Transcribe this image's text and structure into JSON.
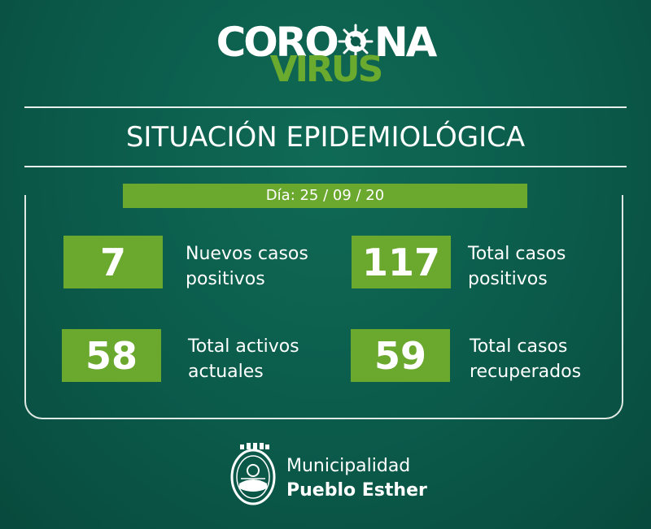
{
  "logo": {
    "line1_a": "CORO",
    "line1_b": "NA",
    "line2": "VIRUS"
  },
  "heading": "SITUACIÓN EPIDEMIOLÓGICA",
  "date": "Día: 25 / 09 / 20",
  "stats": [
    {
      "value": "7",
      "label_1": "Nuevos casos",
      "label_2": "positivos"
    },
    {
      "value": "117",
      "label_1": "Total casos",
      "label_2": "positivos"
    },
    {
      "value": "58",
      "label_1": "Total activos",
      "label_2": "actuales"
    },
    {
      "value": "59",
      "label_1": "Total casos",
      "label_2": "recuperados"
    }
  ],
  "footer": {
    "line_1": "Municipalidad",
    "line_2": "Pueblo Esther"
  },
  "colors": {
    "background": "#0b5a4a",
    "accent_green": "#6aa82e",
    "text": "#ffffff"
  }
}
